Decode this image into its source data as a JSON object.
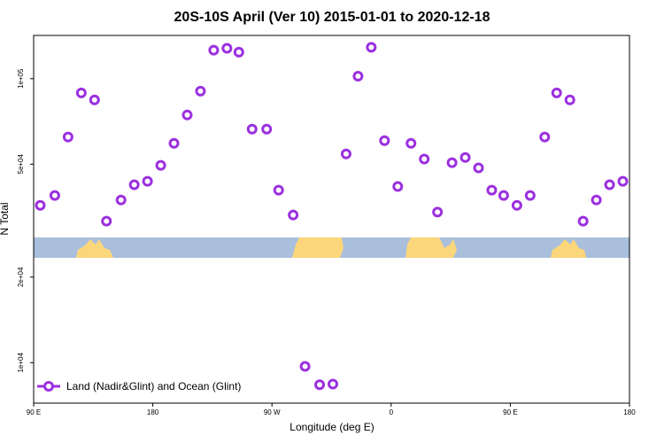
{
  "chart_data": {
    "type": "scatter",
    "title": "20S-10S April (Ver 10)   2015-01-01 to 2020-12-18",
    "x_label": "Longitude (deg E)",
    "y_label": "N Total",
    "log_y": true,
    "xlim": [
      90,
      540
    ],
    "xticks": [
      {
        "value": 90,
        "label": "90 E"
      },
      180,
      {
        "value": 270,
        "label": "90 W"
      },
      {
        "value": 360,
        "label": "0"
      },
      {
        "value": 450,
        "label": "90 E"
      },
      {
        "value": 540,
        "label": "180"
      }
    ],
    "ylim": [
      7200,
      142000
    ],
    "yticks": [
      {
        "value": 10000,
        "label": "1e+04"
      },
      {
        "value": 20000,
        "label": "2e+04"
      },
      {
        "value": 50000,
        "label": "5e+04"
      },
      {
        "value": 100000,
        "label": "1e+05"
      }
    ],
    "legend": "bottom-left",
    "series": [
      {
        "name": "Land (Nadir&Glint) and Ocean (Glint)",
        "color": "#9b30e0",
        "x": [
          95,
          106,
          116,
          126,
          136,
          145,
          156,
          166,
          176,
          186,
          196,
          206,
          216,
          226,
          236,
          245,
          255,
          266,
          275,
          286,
          295,
          306,
          316,
          326,
          335,
          345,
          355,
          365,
          375,
          385,
          395,
          406,
          416,
          426,
          436,
          445,
          455,
          465,
          476,
          485,
          495,
          505,
          515,
          525,
          535
        ],
        "values": [
          35800,
          38800,
          62300,
          89100,
          84200,
          31500,
          37400,
          42300,
          43500,
          49500,
          59200,
          74500,
          90400,
          126000,
          128000,
          124000,
          66400,
          66400,
          40500,
          33100,
          9700,
          8360,
          8400,
          54300,
          102000,
          129000,
          60500,
          41700,
          59200,
          52100,
          33900,
          50600,
          52800,
          48500,
          40500,
          38800,
          35800,
          38800,
          62300,
          89100,
          84200,
          31500,
          37400,
          42300,
          43500
        ]
      }
    ]
  }
}
